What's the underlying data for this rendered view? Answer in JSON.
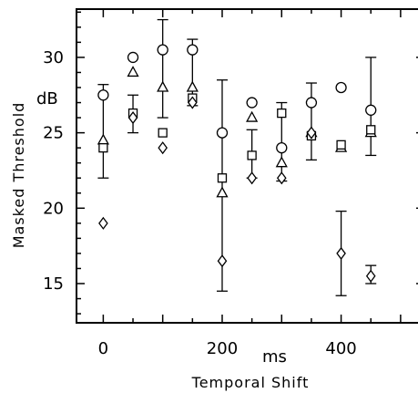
{
  "chart_data": {
    "type": "scatter",
    "xlabel": "Temporal Shift",
    "xunit": "ms",
    "ylabel": "Masked Threshold",
    "yunit": "dB",
    "xlim": [
      -45,
      540
    ],
    "ylim": [
      12.4,
      33.2
    ],
    "xticks": [
      0,
      200,
      400
    ],
    "yticks": [
      15,
      20,
      25,
      30
    ],
    "series": [
      {
        "marker": "circle",
        "points": [
          {
            "x": 0,
            "y": 27.5
          },
          {
            "x": 50,
            "y": 30.0
          },
          {
            "x": 100,
            "y": 30.5
          },
          {
            "x": 150,
            "y": 30.5
          },
          {
            "x": 200,
            "y": 25.0
          },
          {
            "x": 250,
            "y": 27.0
          },
          {
            "x": 300,
            "y": 24.0
          },
          {
            "x": 350,
            "y": 27.0
          },
          {
            "x": 400,
            "y": 28.0
          },
          {
            "x": 450,
            "y": 26.5
          }
        ]
      },
      {
        "marker": "triangle",
        "points": [
          {
            "x": 0,
            "y": 24.5
          },
          {
            "x": 50,
            "y": 29.0
          },
          {
            "x": 100,
            "y": 28.0
          },
          {
            "x": 150,
            "y": 28.0
          },
          {
            "x": 200,
            "y": 21.0
          },
          {
            "x": 250,
            "y": 26.0
          },
          {
            "x": 300,
            "y": 23.0
          },
          {
            "x": 350,
            "y": 25.0
          },
          {
            "x": 400,
            "y": 24.0
          },
          {
            "x": 450,
            "y": 25.0
          }
        ]
      },
      {
        "marker": "square",
        "points": [
          {
            "x": 0,
            "y": 24.0
          },
          {
            "x": 50,
            "y": 26.3
          },
          {
            "x": 100,
            "y": 25.0
          },
          {
            "x": 150,
            "y": 27.3
          },
          {
            "x": 200,
            "y": 22.0
          },
          {
            "x": 250,
            "y": 23.5
          },
          {
            "x": 300,
            "y": 26.3
          },
          {
            "x": 350,
            "y": 24.8
          },
          {
            "x": 400,
            "y": 24.2
          },
          {
            "x": 450,
            "y": 25.2
          }
        ]
      },
      {
        "marker": "diamond",
        "points": [
          {
            "x": 0,
            "y": 19.0
          },
          {
            "x": 50,
            "y": 26.0
          },
          {
            "x": 100,
            "y": 24.0
          },
          {
            "x": 150,
            "y": 27.0
          },
          {
            "x": 200,
            "y": 16.5
          },
          {
            "x": 250,
            "y": 22.0
          },
          {
            "x": 300,
            "y": 22.0
          },
          {
            "x": 350,
            "y": 25.0
          },
          {
            "x": 400,
            "y": 17.0
          },
          {
            "x": 450,
            "y": 15.5
          }
        ]
      }
    ],
    "error_bars": [
      {
        "x": 0,
        "low": 22.0,
        "high": 28.2
      },
      {
        "x": 50,
        "low": 25.0,
        "high": 27.5
      },
      {
        "x": 100,
        "low": 26.0,
        "high": 32.5
      },
      {
        "x": 150,
        "low": 26.8,
        "high": 31.2
      },
      {
        "x": 200,
        "low": 14.5,
        "high": 28.5
      },
      {
        "x": 250,
        "low": 22.0,
        "high": 25.2
      },
      {
        "x": 300,
        "low": 21.8,
        "high": 27.0
      },
      {
        "x": 350,
        "low": 23.2,
        "high": 28.3
      },
      {
        "x": 400,
        "low": 14.2,
        "high": 19.8
      },
      {
        "x": 450,
        "low": 23.5,
        "high": 30.0
      },
      {
        "x": 450,
        "low": 15.0,
        "high": 16.2
      }
    ]
  }
}
